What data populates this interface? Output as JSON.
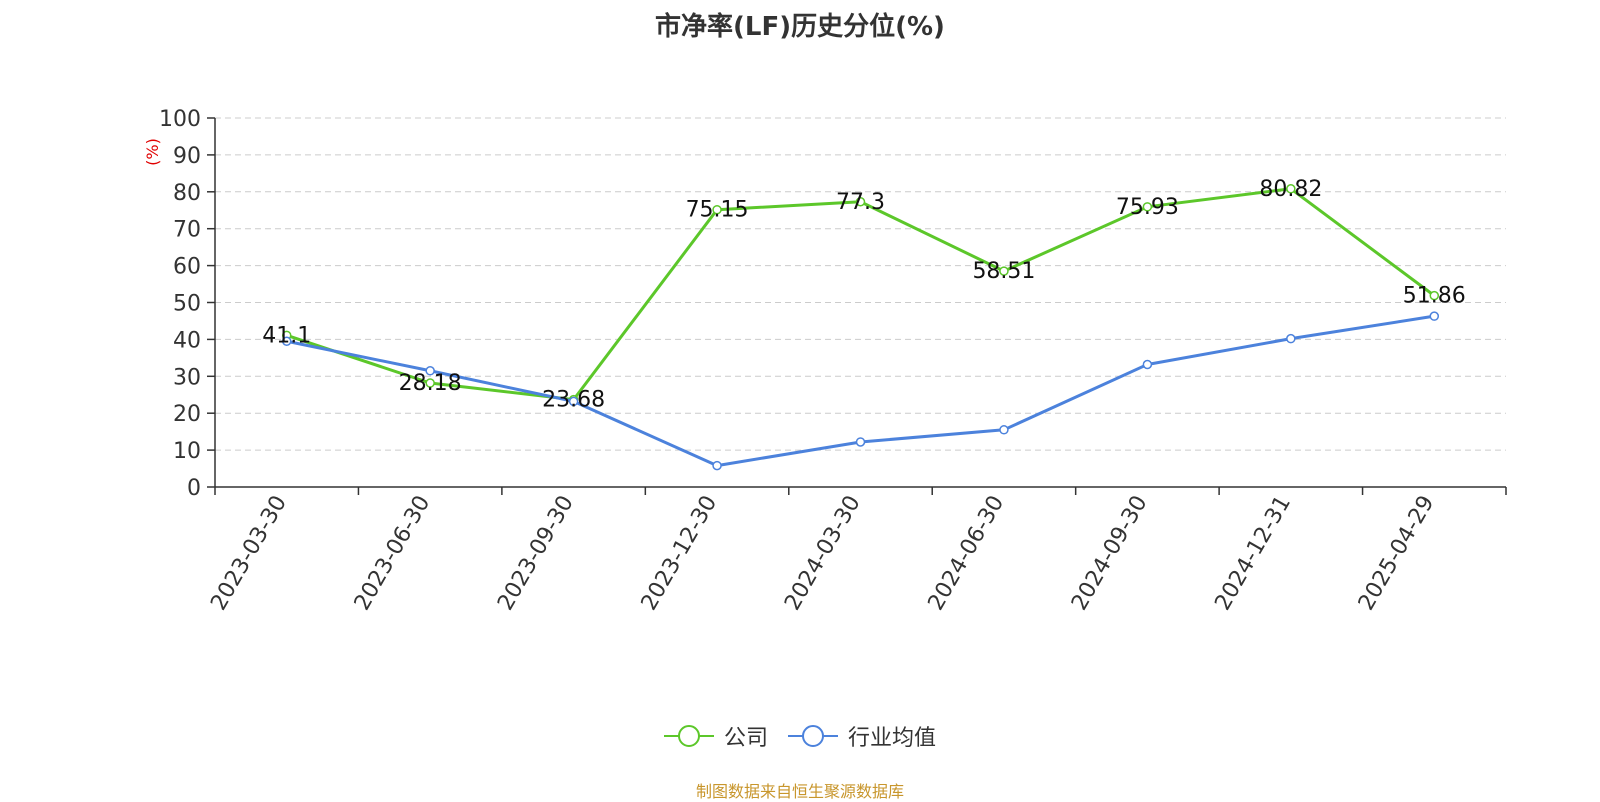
{
  "chart_data": {
    "type": "line",
    "title": "市净率(LF)历史分位(%)",
    "ylabel": "(%)",
    "categories": [
      "2023-03-30",
      "2023-06-30",
      "2023-09-30",
      "2023-12-30",
      "2024-03-30",
      "2024-06-30",
      "2024-09-30",
      "2024-12-31",
      "2025-04-29"
    ],
    "ylim": [
      0,
      100
    ],
    "yticks": [
      0,
      10,
      20,
      30,
      40,
      50,
      60,
      70,
      80,
      90,
      100
    ],
    "grid": true,
    "legend_position": "bottom-center",
    "series": [
      {
        "name": "公司",
        "color": "#5cc72a",
        "values": [
          41.1,
          28.18,
          23.68,
          75.15,
          77.3,
          58.51,
          75.93,
          80.82,
          51.86
        ],
        "show_labels": true
      },
      {
        "name": "行业均值",
        "color": "#4c82dc",
        "values": [
          39.5,
          31.5,
          23.2,
          5.8,
          12.2,
          15.5,
          33.2,
          40.2,
          46.3
        ],
        "show_labels": false
      }
    ]
  },
  "colors": {
    "ylabel": "#e00000",
    "source": "#c8962c",
    "axis": "#333333",
    "grid": "#cccccc"
  },
  "footer": {
    "source": "制图数据来自恒生聚源数据库"
  }
}
